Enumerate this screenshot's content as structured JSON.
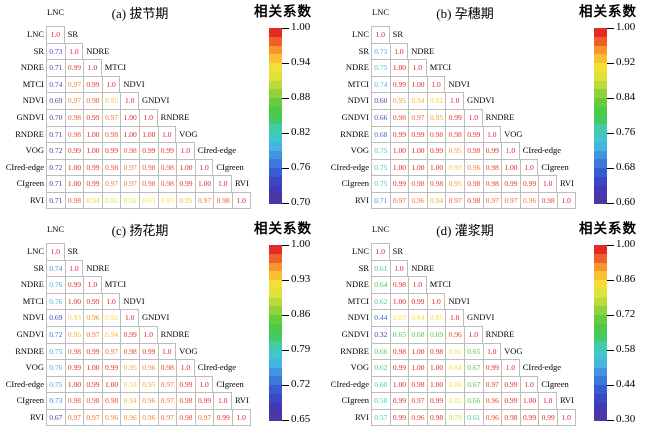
{
  "figure": {
    "colorbar_label": "相关系数",
    "variables": [
      "LNC",
      "SR",
      "NDRE",
      "MTCI",
      "NDVI",
      "GNDVI",
      "RNDRE",
      "VOG",
      "CIred-edge",
      "CIgreen",
      "RVI"
    ]
  },
  "chart_data": [
    {
      "type": "heatmap",
      "title": "(a) 拔节期",
      "labels": [
        "LNC",
        "SR",
        "NDRE",
        "MTCI",
        "NDVI",
        "GNDVI",
        "RNDRE",
        "VOG",
        "CIred-edge",
        "CIgreen",
        "RVI"
      ],
      "colorbar_ticks": [
        "1.00",
        "0.94",
        "0.88",
        "0.82",
        "0.76",
        "0.70"
      ],
      "vmin": 0.7,
      "vmax": 1.0,
      "matrix": [
        [
          "1.0"
        ],
        [
          "0.73",
          "1.0"
        ],
        [
          "0.71",
          "0.99",
          "1.0"
        ],
        [
          "0.74",
          "0.97",
          "0.99",
          "1.0"
        ],
        [
          "0.69",
          "0.97",
          "0.98",
          "0.95",
          "1.0"
        ],
        [
          "0.70",
          "0.98",
          "0.99",
          "0.97",
          "1.00",
          "1.0"
        ],
        [
          "0.71",
          "0.98",
          "1.00",
          "0.98",
          "1.00",
          "1.00",
          "1.0"
        ],
        [
          "0.72",
          "0.99",
          "1.00",
          "0.99",
          "0.98",
          "0.99",
          "0.99",
          "1.0"
        ],
        [
          "0.72",
          "1.00",
          "0.99",
          "0.98",
          "0.97",
          "0.98",
          "0.98",
          "1.00",
          "1.0"
        ],
        [
          "0.71",
          "1.00",
          "0.99",
          "0.97",
          "0.97",
          "0.98",
          "0.98",
          "0.99",
          "1.00",
          "1.0"
        ],
        [
          "0.71",
          "0.98",
          "0.94",
          "0.92",
          "0.92",
          "0.93",
          "0.93",
          "0.95",
          "0.97",
          "0.98",
          "1.0"
        ]
      ]
    },
    {
      "type": "heatmap",
      "title": "(b) 孕穗期",
      "labels": [
        "LNC",
        "SR",
        "NDRE",
        "MTCI",
        "NDVI",
        "GNDVI",
        "RNDRE",
        "VOG",
        "CIred-edge",
        "CIgreen",
        "RVI"
      ],
      "colorbar_ticks": [
        "1.00",
        "0.92",
        "0.84",
        "0.76",
        "0.68",
        "0.60"
      ],
      "vmin": 0.6,
      "vmax": 1.0,
      "matrix": [
        [
          "1.0"
        ],
        [
          "0.73",
          "1.0"
        ],
        [
          "0.75",
          "1.00",
          "1.0"
        ],
        [
          "0.74",
          "0.99",
          "1.00",
          "1.0"
        ],
        [
          "0.60",
          "0.95",
          "0.94",
          "0.92",
          "1.0"
        ],
        [
          "0.66",
          "0.98",
          "0.97",
          "0.95",
          "0.99",
          "1.0"
        ],
        [
          "0.68",
          "0.99",
          "0.99",
          "0.98",
          "0.98",
          "0.99",
          "1.0"
        ],
        [
          "0.75",
          "1.00",
          "1.00",
          "0.99",
          "0.95",
          "0.98",
          "0.99",
          "1.0"
        ],
        [
          "0.75",
          "1.00",
          "1.00",
          "1.00",
          "0.93",
          "0.96",
          "0.98",
          "1.00",
          "1.0"
        ],
        [
          "0.75",
          "0.99",
          "0.98",
          "0.98",
          "0.95",
          "0.98",
          "0.98",
          "0.99",
          "0.99",
          "1.0"
        ],
        [
          "0.71",
          "0.97",
          "0.96",
          "0.94",
          "0.97",
          "0.98",
          "0.97",
          "0.97",
          "0.96",
          "0.98",
          "1.0"
        ]
      ]
    },
    {
      "type": "heatmap",
      "title": "(c) 扬花期",
      "labels": [
        "LNC",
        "SR",
        "NDRE",
        "MTCI",
        "NDVI",
        "GNDVI",
        "RNDRE",
        "VOG",
        "CIred-edge",
        "CIgreen",
        "RVI"
      ],
      "colorbar_ticks": [
        "1.00",
        "0.93",
        "0.86",
        "0.79",
        "0.72",
        "0.65"
      ],
      "vmin": 0.65,
      "vmax": 1.0,
      "matrix": [
        [
          "1.0"
        ],
        [
          "0.74",
          "1.0"
        ],
        [
          "0.76",
          "0.99",
          "1.0"
        ],
        [
          "0.76",
          "1.00",
          "0.99",
          "1.0"
        ],
        [
          "0.69",
          "0.93",
          "0.96",
          "0.92",
          "1.0"
        ],
        [
          "0.72",
          "0.95",
          "0.97",
          "0.94",
          "0.99",
          "1.0"
        ],
        [
          "0.75",
          "0.98",
          "0.99",
          "0.97",
          "0.98",
          "0.99",
          "1.0"
        ],
        [
          "0.76",
          "0.99",
          "1.00",
          "0.99",
          "0.95",
          "0.96",
          "0.98",
          "1.0"
        ],
        [
          "0.75",
          "1.00",
          "0.99",
          "1.00",
          "0.93",
          "0.95",
          "0.97",
          "0.99",
          "1.0"
        ],
        [
          "0.73",
          "0.98",
          "0.98",
          "0.98",
          "0.94",
          "0.96",
          "0.97",
          "0.98",
          "0.99",
          "1.0"
        ],
        [
          "0.67",
          "0.97",
          "0.97",
          "0.96",
          "0.96",
          "0.96",
          "0.97",
          "0.98",
          "0.97",
          "0.99",
          "1.0"
        ]
      ]
    },
    {
      "type": "heatmap",
      "title": "(d) 灌浆期",
      "labels": [
        "LNC",
        "SR",
        "NDRE",
        "MTCI",
        "NDVI",
        "GNDVI",
        "RNDRE",
        "VOG",
        "CIred-edge",
        "CIgreen",
        "RVI"
      ],
      "colorbar_ticks": [
        "1.00",
        "0.86",
        "0.72",
        "0.58",
        "0.44",
        "0.30"
      ],
      "vmin": 0.3,
      "vmax": 1.0,
      "matrix": [
        [
          "1.0"
        ],
        [
          "0.61",
          "1.0"
        ],
        [
          "0.64",
          "0.98",
          "1.0"
        ],
        [
          "0.62",
          "1.00",
          "0.99",
          "1.0"
        ],
        [
          "0.44",
          "0.83",
          "0.84",
          "0.85",
          "1.0"
        ],
        [
          "0.32",
          "0.65",
          "0.68",
          "0.69",
          "0.96",
          "1.0"
        ],
        [
          "0.66",
          "0.98",
          "1.00",
          "0.98",
          "0.81",
          "0.65",
          "1.0"
        ],
        [
          "0.62",
          "0.99",
          "1.00",
          "1.00",
          "0.84",
          "0.67",
          "0.99",
          "1.0"
        ],
        [
          "0.60",
          "1.00",
          "0.98",
          "1.00",
          "0.84",
          "0.67",
          "0.97",
          "0.99",
          "1.0"
        ],
        [
          "0.58",
          "0.99",
          "0.97",
          "0.99",
          "0.82",
          "0.66",
          "0.96",
          "0.99",
          "1.00",
          "1.0"
        ],
        [
          "0.57",
          "0.99",
          "0.96",
          "0.98",
          "0.79",
          "0.61",
          "0.96",
          "0.98",
          "0.99",
          "0.99",
          "1.0"
        ]
      ]
    }
  ]
}
